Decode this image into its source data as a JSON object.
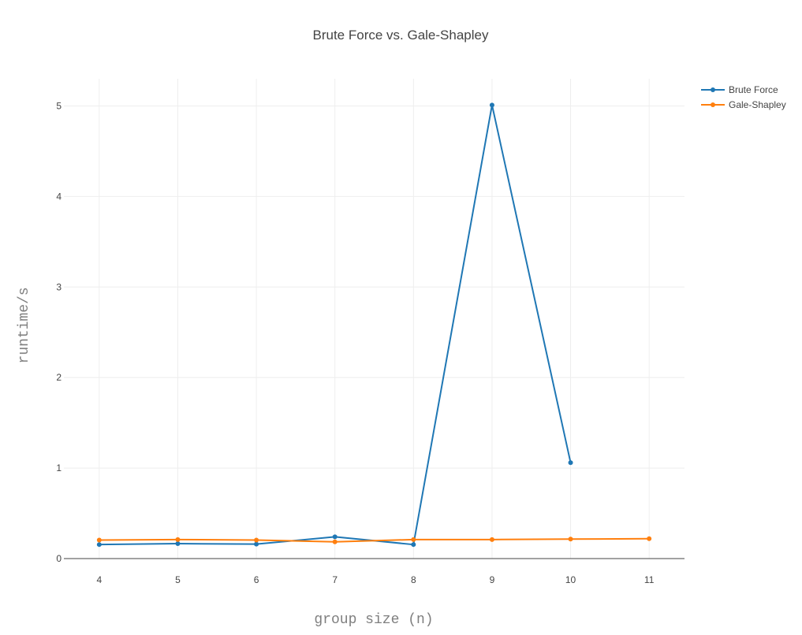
{
  "chart_data": {
    "type": "line",
    "title": "Brute Force vs. Gale-Shapley",
    "xlabel": "group size (n)",
    "ylabel": "runtime/s",
    "xlim": [
      3.55,
      11.45
    ],
    "ylim": [
      0,
      5.3
    ],
    "x_ticks": [
      4,
      5,
      6,
      7,
      8,
      9,
      10,
      11
    ],
    "y_ticks": [
      0,
      1,
      2,
      3,
      4,
      5
    ],
    "grid": true,
    "legend_position": "top-right",
    "series": [
      {
        "name": "Brute Force",
        "color": "#1f77b4",
        "x": [
          4,
          5,
          6,
          7,
          8,
          9,
          10
        ],
        "y": [
          0.155,
          0.165,
          0.16,
          0.24,
          0.155,
          5.01,
          1.06
        ]
      },
      {
        "name": "Gale-Shapley",
        "color": "#ff7f0e",
        "x": [
          4,
          5,
          6,
          7,
          8,
          9,
          10,
          11
        ],
        "y": [
          0.205,
          0.21,
          0.205,
          0.185,
          0.21,
          0.21,
          0.215,
          0.22
        ]
      }
    ]
  }
}
